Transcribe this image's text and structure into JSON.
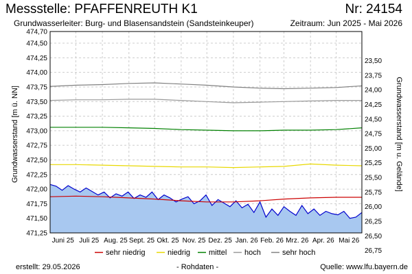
{
  "header": {
    "title": "Messstelle: PFAFFENREUTH K1",
    "number": "Nr: 24154",
    "aquifer": "Grundwasserleiter:   Burg- und Blasensandstein (Sandsteinkeuper)",
    "period": "Zeitraum: Jun 2025 - Mai 2026"
  },
  "footer": {
    "created": "erstellt:  29.05.2026",
    "raw": "- Rohdaten -",
    "source": "Quelle: www.lfu.bayern.de"
  },
  "colors": {
    "fill": "#a8c8f0",
    "level": "#0000cc",
    "very_low": "#cc0000",
    "low": "#e8d800",
    "mean": "#008000",
    "high": "#999999",
    "very_high": "#808080",
    "grid": "#cccccc"
  },
  "chart_data": {
    "type": "line",
    "xlabel": "",
    "ylabel_left": "Grundwasserstand [m ü. NN]",
    "ylabel_right": "Grundwasserstand [m u. Gelände]",
    "ylim": [
      471.25,
      474.7
    ],
    "yticks_left": [
      "471,25",
      "471,50",
      "471,75",
      "472,00",
      "472,25",
      "472,50",
      "472,75",
      "473,00",
      "473,25",
      "473,50",
      "473,75",
      "474,00",
      "474,25",
      "474,50",
      "474,70"
    ],
    "yticks_right": [
      "23,50",
      "23,75",
      "24,00",
      "24,25",
      "24,50",
      "24,75",
      "25,00",
      "25,25",
      "25,50",
      "25,75",
      "26,00",
      "26,25",
      "26,50",
      "26,75"
    ],
    "x_range": [
      "2025-06-01",
      "2026-05-31"
    ],
    "x_ticks": [
      "Juni 25",
      "Juli 25",
      "Aug. 25",
      "Sept. 25",
      "Okt. 25",
      "Nov. 25",
      "Dez. 25",
      "Jan. 26",
      "Feb. 26",
      "Mrz. 26",
      "Apr. 26",
      "Mai 26"
    ],
    "legend": [
      "sehr niedrig",
      "niedrig",
      "mittel",
      "hoch",
      "sehr hoch"
    ],
    "legend_placement": "bottom",
    "grid": true,
    "series": [
      {
        "name": "Grundwasserstand",
        "x": [
          "2025-06-01",
          "2025-06-08",
          "2025-06-15",
          "2025-06-22",
          "2025-06-29",
          "2025-07-06",
          "2025-07-13",
          "2025-07-20",
          "2025-07-27",
          "2025-08-03",
          "2025-08-10",
          "2025-08-17",
          "2025-08-24",
          "2025-08-31",
          "2025-09-07",
          "2025-09-14",
          "2025-09-21",
          "2025-09-28",
          "2025-10-05",
          "2025-10-12",
          "2025-10-19",
          "2025-10-26",
          "2025-11-02",
          "2025-11-09",
          "2025-11-16",
          "2025-11-23",
          "2025-11-30",
          "2025-12-07",
          "2025-12-14",
          "2025-12-21",
          "2025-12-28",
          "2026-01-04",
          "2026-01-11",
          "2026-01-18",
          "2026-01-25",
          "2026-02-01",
          "2026-02-08",
          "2026-02-15",
          "2026-02-22",
          "2026-03-01",
          "2026-03-08",
          "2026-03-15",
          "2026-03-22",
          "2026-03-29",
          "2026-04-05",
          "2026-04-12",
          "2026-04-19",
          "2026-04-26",
          "2026-05-03",
          "2026-05-10",
          "2026-05-17",
          "2026-05-24",
          "2026-05-31"
        ],
        "y": [
          472.08,
          472.05,
          471.98,
          472.06,
          472.0,
          471.95,
          472.02,
          471.96,
          471.9,
          471.95,
          471.85,
          471.92,
          471.88,
          471.95,
          471.84,
          471.9,
          471.86,
          471.95,
          471.82,
          471.9,
          471.85,
          471.78,
          471.83,
          471.87,
          471.75,
          471.8,
          471.9,
          471.72,
          471.82,
          471.76,
          471.7,
          471.8,
          471.68,
          471.74,
          471.6,
          471.78,
          471.52,
          471.66,
          471.55,
          471.7,
          471.62,
          471.55,
          471.72,
          471.58,
          471.66,
          471.55,
          471.62,
          471.58,
          471.56,
          471.62,
          471.5,
          471.52,
          471.6
        ]
      },
      {
        "name": "sehr niedrig",
        "x": [
          "2025-06-01",
          "2025-07-01",
          "2025-08-01",
          "2025-09-01",
          "2025-10-01",
          "2025-11-01",
          "2025-12-01",
          "2026-01-01",
          "2026-02-01",
          "2026-03-01",
          "2026-04-01",
          "2026-05-01",
          "2026-05-31"
        ],
        "y": [
          471.87,
          471.88,
          471.87,
          471.85,
          471.83,
          471.8,
          471.78,
          471.78,
          471.8,
          471.83,
          471.85,
          471.86,
          471.86
        ]
      },
      {
        "name": "niedrig",
        "x": [
          "2025-06-01",
          "2025-07-01",
          "2025-08-01",
          "2025-09-01",
          "2025-10-01",
          "2025-11-01",
          "2025-12-01",
          "2026-01-01",
          "2026-02-01",
          "2026-03-01",
          "2026-04-01",
          "2026-05-01",
          "2026-05-31"
        ],
        "y": [
          472.42,
          472.42,
          472.41,
          472.4,
          472.39,
          472.38,
          472.38,
          472.37,
          472.38,
          472.39,
          472.43,
          472.41,
          472.4
        ]
      },
      {
        "name": "mittel",
        "x": [
          "2025-06-01",
          "2025-07-01",
          "2025-08-01",
          "2025-09-01",
          "2025-10-01",
          "2025-11-01",
          "2025-12-01",
          "2026-01-01",
          "2026-02-01",
          "2026-03-01",
          "2026-04-01",
          "2026-05-01",
          "2026-05-31"
        ],
        "y": [
          473.06,
          473.06,
          473.06,
          473.05,
          473.04,
          473.02,
          473.01,
          473.0,
          473.0,
          473.01,
          473.01,
          473.02,
          473.05
        ]
      },
      {
        "name": "hoch",
        "x": [
          "2025-06-01",
          "2025-07-01",
          "2025-08-01",
          "2025-09-01",
          "2025-10-01",
          "2025-11-01",
          "2025-12-01",
          "2026-01-01",
          "2026-02-01",
          "2026-03-01",
          "2026-04-01",
          "2026-05-01",
          "2026-05-31"
        ],
        "y": [
          473.52,
          473.53,
          473.53,
          473.54,
          473.54,
          473.52,
          473.5,
          473.48,
          473.49,
          473.5,
          473.51,
          473.52,
          473.52
        ]
      },
      {
        "name": "sehr hoch",
        "x": [
          "2025-06-01",
          "2025-07-01",
          "2025-08-01",
          "2025-09-01",
          "2025-10-01",
          "2025-11-01",
          "2025-12-01",
          "2026-01-01",
          "2026-02-01",
          "2026-03-01",
          "2026-04-01",
          "2026-05-01",
          "2026-05-31"
        ],
        "y": [
          473.76,
          473.78,
          473.79,
          473.81,
          473.82,
          473.8,
          473.78,
          473.75,
          473.73,
          473.72,
          473.73,
          473.74,
          473.77
        ]
      }
    ]
  }
}
